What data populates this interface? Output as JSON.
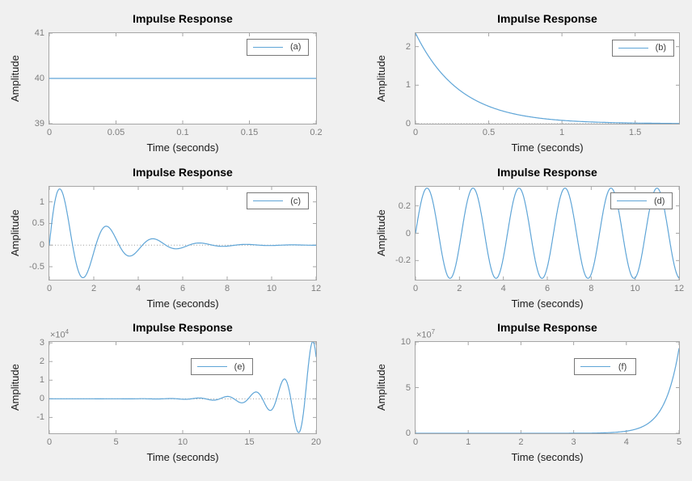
{
  "figure": {
    "background": "#f0f0f0",
    "plot_background": "#ffffff"
  },
  "colors": {
    "line": "#5fa5d7",
    "axis_box": "#a6a6a6",
    "tick_label": "#7d7d7d",
    "text": "#1a1a1a",
    "legend_border": "#787878",
    "zero_line": "#9c9c9c"
  },
  "chart_data": [
    {
      "id": "a",
      "type": "line",
      "title": "Impulse Response",
      "xlabel": "Time (seconds)",
      "ylabel": "Amplitude",
      "legend": "(a)",
      "legend_position": "inside-top-right",
      "legend_pos": {
        "x": 0.74,
        "y": 0.06
      },
      "grid": false,
      "box": true,
      "xlim": [
        0,
        0.2
      ],
      "ylim": [
        39,
        41
      ],
      "xtick_values": [
        0,
        0.05,
        0.1,
        0.15,
        0.2
      ],
      "xtick_labels": [
        "0",
        "0.05",
        "0.1",
        "0.15",
        "0.2"
      ],
      "ytick_values": [
        39,
        40,
        41
      ],
      "ytick_labels": [
        "39",
        "40",
        "41"
      ],
      "multiplier": null,
      "zero_line": false,
      "signal": {
        "kind": "constant",
        "value": 40
      },
      "keypoints": [
        [
          0,
          40
        ],
        [
          0.2,
          40
        ]
      ]
    },
    {
      "id": "b",
      "type": "line",
      "title": "Impulse Response",
      "xlabel": "Time (seconds)",
      "ylabel": "Amplitude",
      "legend": "(b)",
      "legend_position": "inside-top-right",
      "legend_pos": {
        "x": 0.745,
        "y": 0.07
      },
      "grid": false,
      "box": true,
      "xlim": [
        0,
        1.8
      ],
      "ylim": [
        0,
        2.35
      ],
      "xtick_values": [
        0,
        0.5,
        1,
        1.5
      ],
      "xtick_labels": [
        "0",
        "0.5",
        "1",
        "1.5"
      ],
      "ytick_values": [
        0,
        1,
        2
      ],
      "ytick_labels": [
        "0",
        "1",
        "2"
      ],
      "multiplier": null,
      "zero_line": true,
      "signal": {
        "kind": "exp_decay",
        "amplitude": 2.35,
        "rate": 3.3
      },
      "keypoints": [
        [
          0,
          2.35
        ],
        [
          0.3,
          0.87
        ],
        [
          0.5,
          0.45
        ],
        [
          1,
          0.09
        ],
        [
          1.8,
          0
        ]
      ]
    },
    {
      "id": "c",
      "type": "line",
      "title": "Impulse Response",
      "xlabel": "Time (seconds)",
      "ylabel": "Amplitude",
      "legend": "(c)",
      "legend_position": "inside-top-right",
      "legend_pos": {
        "x": 0.74,
        "y": 0.065
      },
      "grid": false,
      "box": true,
      "xlim": [
        0,
        12
      ],
      "ylim": [
        -0.8,
        1.35
      ],
      "xtick_values": [
        0,
        2,
        4,
        6,
        8,
        10,
        12
      ],
      "xtick_labels": [
        "0",
        "2",
        "4",
        "6",
        "8",
        "10",
        "12"
      ],
      "ytick_values": [
        -0.5,
        0,
        0.5,
        1
      ],
      "ytick_labels": [
        "-0.5",
        "0",
        "0.5",
        "1"
      ],
      "multiplier": null,
      "zero_line": true,
      "signal": {
        "kind": "damped_sine",
        "amplitude": 1.68,
        "sigma": 0.52,
        "omega": 3.0
      },
      "keypoints": [
        [
          0,
          0
        ],
        [
          0.47,
          1.3
        ],
        [
          1.51,
          -0.75
        ],
        [
          2.57,
          0.45
        ],
        [
          3.61,
          -0.25
        ],
        [
          4.66,
          0.15
        ],
        [
          5.7,
          -0.08
        ],
        [
          12,
          0
        ]
      ]
    },
    {
      "id": "d",
      "type": "line",
      "title": "Impulse Response",
      "xlabel": "Time (seconds)",
      "ylabel": "Amplitude",
      "legend": "(d)",
      "legend_position": "inside-top-right",
      "legend_pos": {
        "x": 0.74,
        "y": 0.065
      },
      "grid": false,
      "box": true,
      "xlim": [
        0,
        12
      ],
      "ylim": [
        -0.34,
        0.34
      ],
      "xtick_values": [
        0,
        2,
        4,
        6,
        8,
        10,
        12
      ],
      "xtick_labels": [
        "0",
        "2",
        "4",
        "6",
        "8",
        "10",
        "12"
      ],
      "ytick_values": [
        -0.2,
        0,
        0.2
      ],
      "ytick_labels": [
        "-0.2",
        "0",
        "0.2"
      ],
      "multiplier": null,
      "zero_line": false,
      "signal": {
        "kind": "sine",
        "amplitude": 0.33,
        "omega": 3.0
      },
      "keypoints": [
        [
          0,
          0
        ],
        [
          0.52,
          0.33
        ],
        [
          1.57,
          -0.33
        ],
        [
          2.62,
          0.33
        ],
        [
          3.67,
          -0.33
        ],
        [
          4.71,
          0.33
        ],
        [
          5.76,
          -0.33
        ],
        [
          6.81,
          0.33
        ],
        [
          7.85,
          -0.33
        ],
        [
          8.9,
          0.33
        ],
        [
          9.95,
          -0.33
        ],
        [
          11.0,
          0.33
        ],
        [
          12,
          -0.33
        ]
      ]
    },
    {
      "id": "e",
      "type": "line",
      "title": "Impulse Response",
      "xlabel": "Time (seconds)",
      "ylabel": "Amplitude",
      "legend": "(e)",
      "legend_position": "inside-top-center-right",
      "legend_pos": {
        "x": 0.53,
        "y": 0.18
      },
      "grid": false,
      "box": true,
      "xlim": [
        0,
        20
      ],
      "ylim": [
        -18500,
        30500
      ],
      "xtick_values": [
        0,
        5,
        10,
        15,
        20
      ],
      "xtick_labels": [
        "0",
        "5",
        "10",
        "15",
        "20"
      ],
      "ytick_values": [
        -10000,
        0,
        10000,
        20000,
        30000
      ],
      "ytick_labels": [
        "-1",
        "0",
        "1",
        "2",
        "3"
      ],
      "multiplier": {
        "base": "×10",
        "exp": "4"
      },
      "zero_line": true,
      "signal": {
        "kind": "damped_sine",
        "amplitude": 1.6,
        "sigma": -0.5,
        "omega": 2.95
      },
      "keypoints": [
        [
          0,
          0
        ],
        [
          13.3,
          1500
        ],
        [
          14.4,
          -2000
        ],
        [
          15.4,
          4000
        ],
        [
          16.5,
          -6500
        ],
        [
          17.6,
          10800
        ],
        [
          18.6,
          -17800
        ],
        [
          19.7,
          30300
        ],
        [
          20,
          22500
        ]
      ]
    },
    {
      "id": "f",
      "type": "line",
      "title": "Impulse Response",
      "xlabel": "Time (seconds)",
      "ylabel": "Amplitude",
      "legend": "(f)",
      "legend_position": "inside-top-center-right",
      "legend_pos": {
        "x": 0.6,
        "y": 0.18
      },
      "grid": false,
      "box": true,
      "xlim": [
        0,
        5
      ],
      "ylim": [
        0,
        100000000
      ],
      "xtick_values": [
        0,
        1,
        2,
        3,
        4,
        5
      ],
      "xtick_labels": [
        "0",
        "1",
        "2",
        "3",
        "4",
        "5"
      ],
      "ytick_values": [
        0,
        50000000,
        100000000
      ],
      "ytick_labels": [
        "0",
        "5",
        "10"
      ],
      "multiplier": {
        "base": "×10",
        "exp": "7"
      },
      "zero_line": false,
      "signal": {
        "kind": "exp_growth",
        "amplitude": 1,
        "rate": 3.67
      },
      "keypoints": [
        [
          0,
          1
        ],
        [
          3,
          60000
        ],
        [
          4,
          2400000
        ],
        [
          4.5,
          15000000
        ],
        [
          5,
          93000000
        ]
      ]
    }
  ]
}
